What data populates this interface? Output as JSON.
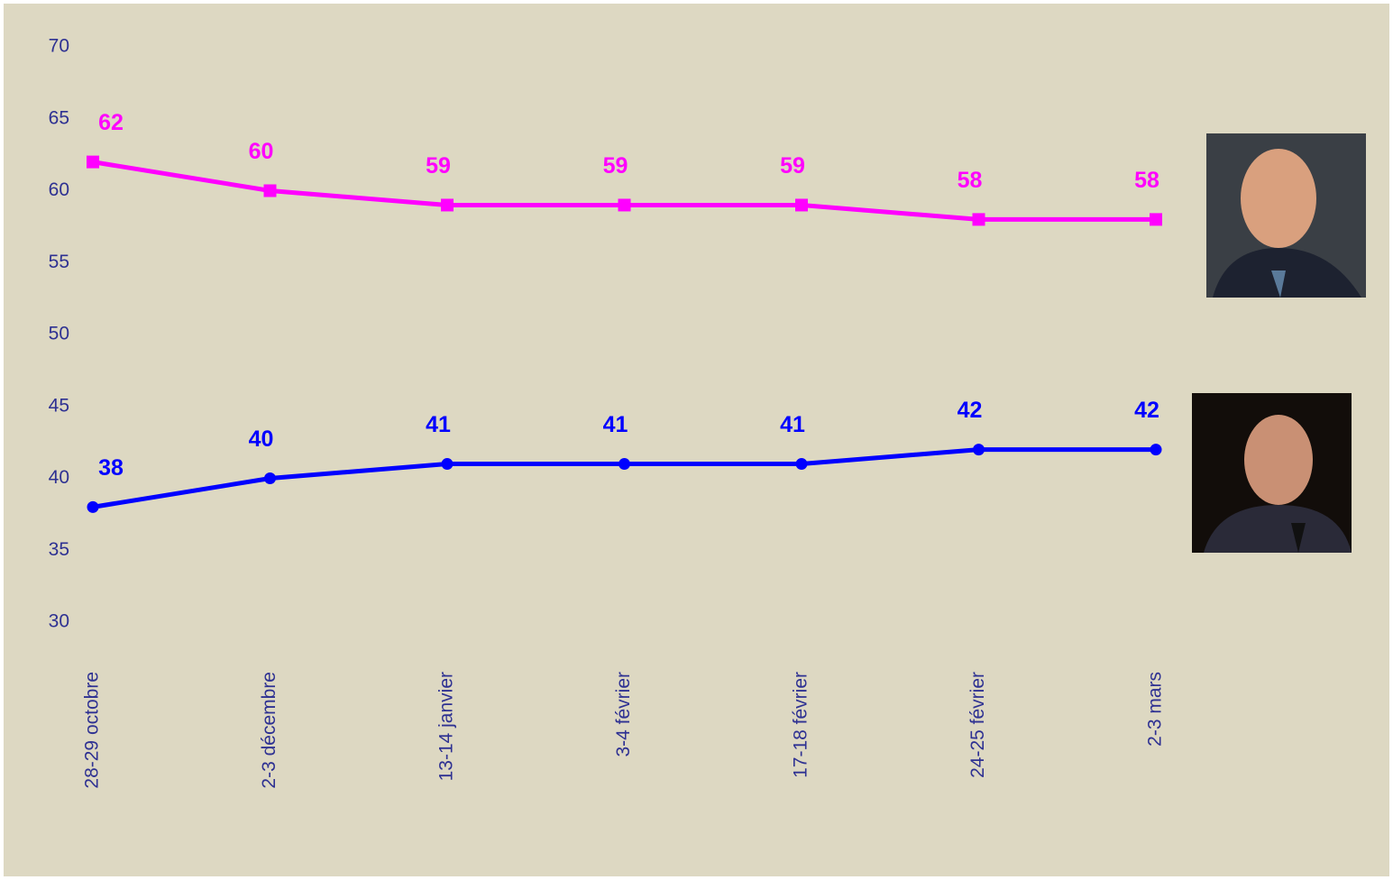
{
  "chart_data": {
    "type": "line",
    "categories": [
      "28-29 octobre",
      "2-3 décembre",
      "13-14 janvier",
      "3-4 février",
      "17-18 février",
      "24-25 février",
      "2-3 mars"
    ],
    "series": [
      {
        "color": "#ff00ff",
        "marker": "square",
        "values": [
          62,
          60,
          59,
          59,
          59,
          58,
          58
        ]
      },
      {
        "color": "#0000ff",
        "marker": "circle",
        "values": [
          38,
          40,
          41,
          41,
          41,
          42,
          42
        ]
      }
    ],
    "ylim": [
      30,
      70
    ],
    "yticks": [
      30,
      35,
      40,
      45,
      50,
      55,
      60,
      65,
      70
    ],
    "grid": false
  }
}
